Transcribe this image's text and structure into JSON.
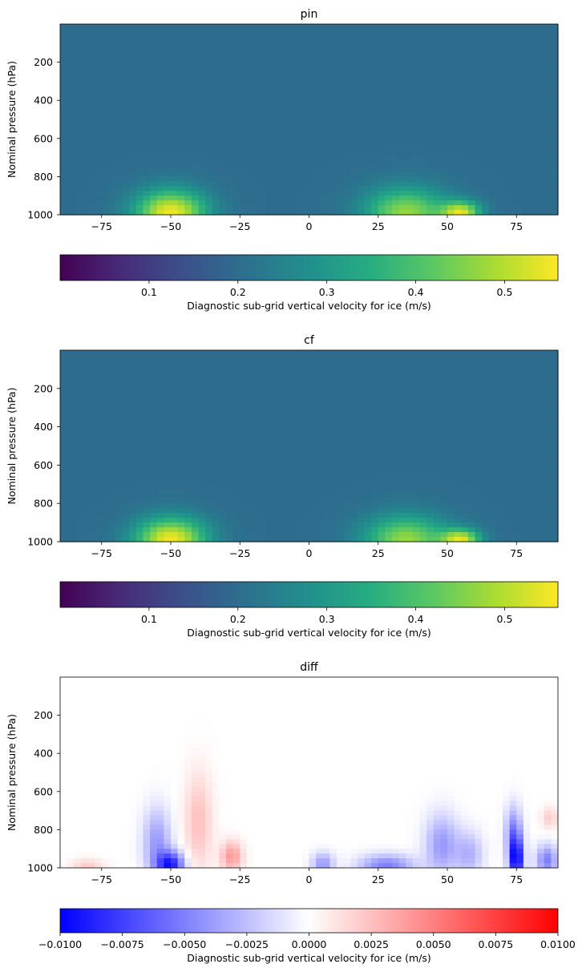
{
  "figure": {
    "panels": [
      {
        "id": "pin",
        "title": "pin"
      },
      {
        "id": "cf",
        "title": "cf"
      },
      {
        "id": "diff",
        "title": "diff"
      }
    ]
  },
  "chart_data": [
    {
      "type": "heatmap",
      "title": "pin",
      "xlabel": "",
      "ylabel": "Nominal pressure (hPa)",
      "xlim": [
        -90,
        90
      ],
      "ylim": [
        1000,
        0
      ],
      "x_ticks": [
        -75,
        -50,
        -25,
        0,
        25,
        50,
        75
      ],
      "y_ticks": [
        200,
        400,
        600,
        800,
        1000
      ],
      "colormap": "viridis",
      "colorbar": {
        "label": "Diagnostic sub-grid vertical velocity for ice (m/s)",
        "range": [
          0.0,
          0.56
        ],
        "ticks": [
          0.1,
          0.2,
          0.3,
          0.4,
          0.5
        ],
        "orientation": "horizontal"
      },
      "background_value": 0.2,
      "features": [
        {
          "lat": -50,
          "pressure": 990,
          "value": 0.55,
          "lat_width": 13,
          "depth_hPa": 120
        },
        {
          "lat": 35,
          "pressure": 990,
          "value": 0.47,
          "lat_width": 15,
          "depth_hPa": 130
        },
        {
          "lat": 55,
          "pressure": 990,
          "value": 0.5,
          "lat_width": 7,
          "depth_hPa": 60
        }
      ]
    },
    {
      "type": "heatmap",
      "title": "cf",
      "xlabel": "",
      "ylabel": "Nominal pressure (hPa)",
      "xlim": [
        -90,
        90
      ],
      "ylim": [
        1000,
        0
      ],
      "x_ticks": [
        -75,
        -50,
        -25,
        0,
        25,
        50,
        75
      ],
      "y_ticks": [
        200,
        400,
        600,
        800,
        1000
      ],
      "colormap": "viridis",
      "colorbar": {
        "label": "Diagnostic sub-grid vertical velocity for ice (m/s)",
        "range": [
          0.0,
          0.56
        ],
        "ticks": [
          0.1,
          0.2,
          0.3,
          0.4,
          0.5
        ],
        "orientation": "horizontal"
      },
      "background_value": 0.2,
      "features": [
        {
          "lat": -50,
          "pressure": 990,
          "value": 0.55,
          "lat_width": 13,
          "depth_hPa": 115
        },
        {
          "lat": 35,
          "pressure": 990,
          "value": 0.47,
          "lat_width": 15,
          "depth_hPa": 125
        },
        {
          "lat": 55,
          "pressure": 990,
          "value": 0.5,
          "lat_width": 7,
          "depth_hPa": 55
        }
      ]
    },
    {
      "type": "heatmap",
      "title": "diff",
      "xlabel": "",
      "ylabel": "Nominal pressure (hPa)",
      "xlim": [
        -90,
        90
      ],
      "ylim": [
        1000,
        0
      ],
      "x_ticks": [
        -75,
        -50,
        -25,
        0,
        25,
        50,
        75
      ],
      "y_ticks": [
        200,
        400,
        600,
        800,
        1000
      ],
      "colormap": "bwr",
      "colorbar": {
        "label": "Diagnostic sub-grid vertical velocity for ice (m/s)",
        "range": [
          -0.01,
          0.01
        ],
        "ticks": [
          -0.01,
          -0.0075,
          -0.005,
          -0.0025,
          0.0,
          0.0025,
          0.005,
          0.0075,
          0.01
        ],
        "tick_labels": [
          "−0.0100",
          "−0.0075",
          "−0.0050",
          "−0.0025",
          "0.0000",
          "0.0025",
          "0.0050",
          "0.0075",
          "0.0100"
        ],
        "orientation": "horizontal"
      },
      "background_value": 0.0,
      "features": [
        {
          "lat": -50,
          "pressure": 985,
          "value": -0.0085,
          "lat_width": 5,
          "depth_hPa": 70
        },
        {
          "lat": -55,
          "pressure": 870,
          "value": -0.004,
          "lat_width": 5,
          "depth_hPa": 180
        },
        {
          "lat": -40,
          "pressure": 760,
          "value": 0.0025,
          "lat_width": 5,
          "depth_hPa": 260
        },
        {
          "lat": -28,
          "pressure": 940,
          "value": 0.004,
          "lat_width": 4,
          "depth_hPa": 80
        },
        {
          "lat": -80,
          "pressure": 990,
          "value": 0.002,
          "lat_width": 6,
          "depth_hPa": 40
        },
        {
          "lat": 5,
          "pressure": 980,
          "value": -0.004,
          "lat_width": 4,
          "depth_hPa": 60
        },
        {
          "lat": 28,
          "pressure": 990,
          "value": -0.005,
          "lat_width": 10,
          "depth_hPa": 60
        },
        {
          "lat": 48,
          "pressure": 880,
          "value": -0.004,
          "lat_width": 6,
          "depth_hPa": 160
        },
        {
          "lat": 58,
          "pressure": 930,
          "value": -0.003,
          "lat_width": 5,
          "depth_hPa": 120
        },
        {
          "lat": 75,
          "pressure": 960,
          "value": -0.0095,
          "lat_width": 2.5,
          "depth_hPa": 110
        },
        {
          "lat": 74,
          "pressure": 820,
          "value": -0.005,
          "lat_width": 3,
          "depth_hPa": 140
        },
        {
          "lat": 86,
          "pressure": 960,
          "value": -0.005,
          "lat_width": 4,
          "depth_hPa": 80
        },
        {
          "lat": 87,
          "pressure": 740,
          "value": 0.002,
          "lat_width": 3,
          "depth_hPa": 60
        }
      ]
    }
  ]
}
